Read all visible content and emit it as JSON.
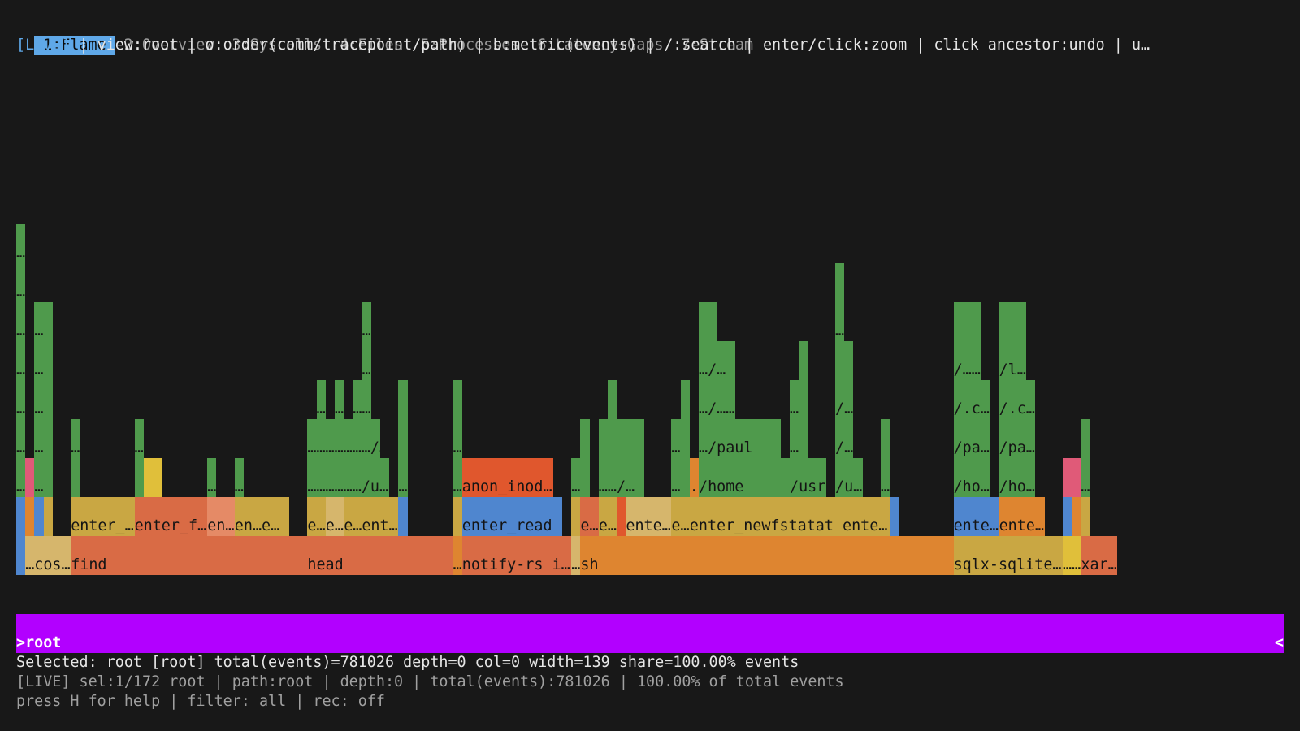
{
  "tabs": [
    {
      "label": "1:Flame",
      "active": true
    },
    {
      "label": "2:Overview",
      "active": false
    },
    {
      "label": "3:Syscalls",
      "active": false
    },
    {
      "label": "4:Files",
      "active": false
    },
    {
      "label": "5:Processes",
      "active": false
    },
    {
      "label": "6:Latency+Gaps",
      "active": false
    },
    {
      "label": "7:Stream",
      "active": false
    }
  ],
  "header": {
    "live_tag": "[LIVE]",
    "hint": " | view:root | o:order(comm/tracepoint/path) | b:metric(events) | /:search | enter/click:zoom | click ancestor:undo | u…"
  },
  "root": {
    "label": ">root",
    "right_marker": "<"
  },
  "status": {
    "selected": "Selected: root [root] total(events)=781026 depth=0 col=0 width=139 share=100.00% events",
    "info": "[LIVE] sel:1/172 root | path:root | depth:0 | total(events):781026 | 100.00% of total events",
    "help": "press H for help | filter: all | rec: off"
  },
  "colors": {
    "green": "#4f9a4c",
    "orange": "#de8530",
    "salmon": "#d96b45",
    "gold": "#c9a743",
    "blue": "#4f86cf",
    "red": "#e0572d",
    "pink": "#e05a78",
    "yellow": "#e0bf3a",
    "tan": "#d6b66c",
    "magenta": "#b200ff"
  },
  "frames": [
    {
      "col": 0,
      "w": 1,
      "lvl": 2,
      "c": "blue",
      "t": ""
    },
    {
      "col": 0,
      "w": 1,
      "lvl": 3,
      "c": "blue",
      "t": ""
    },
    {
      "col": 0,
      "w": 1,
      "lvl": 4,
      "c": "green",
      "t": "…"
    },
    {
      "col": 0,
      "w": 1,
      "lvl": 5,
      "c": "green",
      "t": "…"
    },
    {
      "col": 0,
      "w": 1,
      "lvl": 6,
      "c": "green",
      "t": "…"
    },
    {
      "col": 0,
      "w": 1,
      "lvl": 7,
      "c": "green",
      "t": "…"
    },
    {
      "col": 0,
      "w": 1,
      "lvl": 8,
      "c": "green",
      "t": "…"
    },
    {
      "col": 0,
      "w": 1,
      "lvl": 9,
      "c": "green",
      "t": "…"
    },
    {
      "col": 0,
      "w": 1,
      "lvl": 10,
      "c": "green",
      "t": "…"
    },
    {
      "col": 1,
      "w": 5,
      "lvl": 2,
      "c": "tan",
      "t": "…cos…"
    },
    {
      "col": 1,
      "w": 1,
      "lvl": 3,
      "c": "orange",
      "t": ""
    },
    {
      "col": 1,
      "w": 1,
      "lvl": 4,
      "c": "pink",
      "t": ""
    },
    {
      "col": 2,
      "w": 2,
      "lvl": 3,
      "c": "blue",
      "t": ""
    },
    {
      "col": 2,
      "w": 2,
      "lvl": 4,
      "c": "green",
      "t": "…"
    },
    {
      "col": 2,
      "w": 2,
      "lvl": 5,
      "c": "green",
      "t": "…"
    },
    {
      "col": 2,
      "w": 2,
      "lvl": 6,
      "c": "green",
      "t": "…"
    },
    {
      "col": 2,
      "w": 2,
      "lvl": 7,
      "c": "green",
      "t": "…"
    },
    {
      "col": 2,
      "w": 2,
      "lvl": 8,
      "c": "green",
      "t": "…"
    },
    {
      "col": 3,
      "w": 1,
      "lvl": 3,
      "c": "gold",
      "t": ""
    },
    {
      "col": 6,
      "w": 26,
      "lvl": 2,
      "c": "salmon",
      "t": "find"
    },
    {
      "col": 6,
      "w": 7,
      "lvl": 3,
      "c": "gold",
      "t": "enter_…"
    },
    {
      "col": 6,
      "w": 1,
      "lvl": 4,
      "c": "green",
      "t": ""
    },
    {
      "col": 6,
      "w": 1,
      "lvl": 5,
      "c": "green",
      "t": "…"
    },
    {
      "col": 13,
      "w": 8,
      "lvl": 3,
      "c": "salmon",
      "t": "enter_f…"
    },
    {
      "col": 13,
      "w": 1,
      "lvl": 4,
      "c": "green",
      "t": ""
    },
    {
      "col": 13,
      "w": 1,
      "lvl": 5,
      "c": "green",
      "t": "…"
    },
    {
      "col": 14,
      "w": 2,
      "lvl": 4,
      "c": "yellow",
      "t": ""
    },
    {
      "col": 21,
      "w": 3,
      "lvl": 3,
      "c": "pinksalmon",
      "t": "en…"
    },
    {
      "col": 21,
      "w": 1,
      "lvl": 4,
      "c": "green",
      "t": "…"
    },
    {
      "col": 24,
      "w": 6,
      "lvl": 3,
      "c": "gold",
      "t": "en…e…"
    },
    {
      "col": 24,
      "w": 1,
      "lvl": 4,
      "c": "green",
      "t": "…"
    },
    {
      "col": 32,
      "w": 16,
      "lvl": 2,
      "c": "salmon",
      "t": "head"
    },
    {
      "col": 32,
      "w": 2,
      "lvl": 3,
      "c": "gold",
      "t": "e…"
    },
    {
      "col": 34,
      "w": 2,
      "lvl": 3,
      "c": "tan",
      "t": "e…"
    },
    {
      "col": 36,
      "w": 6,
      "lvl": 3,
      "c": "gold",
      "t": "e…ent…"
    },
    {
      "col": 32,
      "w": 9,
      "lvl": 4,
      "c": "green",
      "t": "………………/u…"
    },
    {
      "col": 32,
      "w": 8,
      "lvl": 5,
      "c": "green",
      "t": "…………………/…"
    },
    {
      "col": 33,
      "w": 1,
      "lvl": 6,
      "c": "green",
      "t": "…"
    },
    {
      "col": 35,
      "w": 1,
      "lvl": 6,
      "c": "green",
      "t": "…"
    },
    {
      "col": 37,
      "w": 2,
      "lvl": 6,
      "c": "green",
      "t": "……"
    },
    {
      "col": 38,
      "w": 1,
      "lvl": 7,
      "c": "green",
      "t": "…"
    },
    {
      "col": 38,
      "w": 1,
      "lvl": 8,
      "c": "green",
      "t": "…"
    },
    {
      "col": 42,
      "w": 1,
      "lvl": 3,
      "c": "blue",
      "t": ""
    },
    {
      "col": 42,
      "w": 1,
      "lvl": 4,
      "c": "green",
      "t": "…"
    },
    {
      "col": 42,
      "w": 1,
      "lvl": 5,
      "c": "green",
      "t": ""
    },
    {
      "col": 42,
      "w": 1,
      "lvl": 6,
      "c": "green",
      "t": ""
    },
    {
      "col": 48,
      "w": 1,
      "lvl": 2,
      "c": "orange",
      "t": "…"
    },
    {
      "col": 48,
      "w": 1,
      "lvl": 3,
      "c": "gold",
      "t": ""
    },
    {
      "col": 48,
      "w": 1,
      "lvl": 4,
      "c": "green",
      "t": "…"
    },
    {
      "col": 48,
      "w": 1,
      "lvl": 5,
      "c": "green",
      "t": "…"
    },
    {
      "col": 48,
      "w": 1,
      "lvl": 6,
      "c": "green",
      "t": ""
    },
    {
      "col": 49,
      "w": 12,
      "lvl": 2,
      "c": "salmon",
      "t": "notify-rs i…"
    },
    {
      "col": 49,
      "w": 11,
      "lvl": 3,
      "c": "blue",
      "t": "enter_read"
    },
    {
      "col": 49,
      "w": 10,
      "lvl": 4,
      "c": "red",
      "t": "anon_inod…"
    },
    {
      "col": 61,
      "w": 1,
      "lvl": 2,
      "c": "tan",
      "t": "…"
    },
    {
      "col": 62,
      "w": 41,
      "lvl": 2,
      "c": "orange",
      "t": "sh"
    },
    {
      "col": 61,
      "w": 1,
      "lvl": 3,
      "c": "gold",
      "t": ""
    },
    {
      "col": 62,
      "w": 2,
      "lvl": 3,
      "c": "salmon",
      "t": "e…"
    },
    {
      "col": 64,
      "w": 2,
      "lvl": 3,
      "c": "gold",
      "t": "e…"
    },
    {
      "col": 66,
      "w": 1,
      "lvl": 3,
      "c": "red",
      "t": ""
    },
    {
      "col": 67,
      "w": 5,
      "lvl": 3,
      "c": "tan",
      "t": "ente…"
    },
    {
      "col": 72,
      "w": 2,
      "lvl": 3,
      "c": "gold",
      "t": "e…"
    },
    {
      "col": 74,
      "w": 22,
      "lvl": 3,
      "c": "gold",
      "t": "enter_newfstatat ente…"
    },
    {
      "col": 96,
      "w": 1,
      "lvl": 3,
      "c": "blue",
      "t": ""
    },
    {
      "col": 61,
      "w": 2,
      "lvl": 4,
      "c": "green",
      "t": "…"
    },
    {
      "col": 62,
      "w": 1,
      "lvl": 5,
      "c": "green",
      "t": ""
    },
    {
      "col": 64,
      "w": 5,
      "lvl": 4,
      "c": "green",
      "t": "……/…"
    },
    {
      "col": 64,
      "w": 5,
      "lvl": 5,
      "c": "green",
      "t": ""
    },
    {
      "col": 65,
      "w": 1,
      "lvl": 6,
      "c": "green",
      "t": ""
    },
    {
      "col": 72,
      "w": 2,
      "lvl": 4,
      "c": "green",
      "t": "…"
    },
    {
      "col": 72,
      "w": 2,
      "lvl": 5,
      "c": "green",
      "t": "…"
    },
    {
      "col": 73,
      "w": 1,
      "lvl": 6,
      "c": "green",
      "t": ""
    },
    {
      "col": 74,
      "w": 1,
      "lvl": 4,
      "c": "orange",
      "t": "."
    },
    {
      "col": 75,
      "w": 10,
      "lvl": 4,
      "c": "green",
      "t": "/home"
    },
    {
      "col": 85,
      "w": 4,
      "lvl": 4,
      "c": "green",
      "t": "/usr"
    },
    {
      "col": 75,
      "w": 9,
      "lvl": 5,
      "c": "green",
      "t": "…/paul"
    },
    {
      "col": 75,
      "w": 4,
      "lvl": 6,
      "c": "green",
      "t": "…/……"
    },
    {
      "col": 75,
      "w": 4,
      "lvl": 7,
      "c": "green",
      "t": "…/…"
    },
    {
      "col": 75,
      "w": 2,
      "lvl": 8,
      "c": "green",
      "t": ""
    },
    {
      "col": 85,
      "w": 2,
      "lvl": 5,
      "c": "green",
      "t": "…"
    },
    {
      "col": 85,
      "w": 2,
      "lvl": 6,
      "c": "green",
      "t": "…"
    },
    {
      "col": 86,
      "w": 1,
      "lvl": 7,
      "c": "green",
      "t": ""
    },
    {
      "col": 90,
      "w": 3,
      "lvl": 4,
      "c": "green",
      "t": "/u…"
    },
    {
      "col": 90,
      "w": 2,
      "lvl": 5,
      "c": "green",
      "t": "/…"
    },
    {
      "col": 90,
      "w": 2,
      "lvl": 6,
      "c": "green",
      "t": "/…"
    },
    {
      "col": 90,
      "w": 2,
      "lvl": 7,
      "c": "green",
      "t": ""
    },
    {
      "col": 90,
      "w": 1,
      "lvl": 8,
      "c": "green",
      "t": "…"
    },
    {
      "col": 90,
      "w": 1,
      "lvl": 9,
      "c": "green",
      "t": ""
    },
    {
      "col": 95,
      "w": 1,
      "lvl": 4,
      "c": "green",
      "t": "…"
    },
    {
      "col": 95,
      "w": 1,
      "lvl": 5,
      "c": "green",
      "t": ""
    },
    {
      "col": 103,
      "w": 12,
      "lvl": 2,
      "c": "gold",
      "t": "sqlx-sqlite…"
    },
    {
      "col": 103,
      "w": 5,
      "lvl": 3,
      "c": "blue",
      "t": "ente…"
    },
    {
      "col": 108,
      "w": 5,
      "lvl": 3,
      "c": "orange",
      "t": "ente…"
    },
    {
      "col": 103,
      "w": 4,
      "lvl": 4,
      "c": "green",
      "t": "/ho…"
    },
    {
      "col": 103,
      "w": 4,
      "lvl": 5,
      "c": "green",
      "t": "/pa…"
    },
    {
      "col": 103,
      "w": 4,
      "lvl": 6,
      "c": "green",
      "t": "/.c…"
    },
    {
      "col": 103,
      "w": 3,
      "lvl": 7,
      "c": "green",
      "t": "/……"
    },
    {
      "col": 103,
      "w": 3,
      "lvl": 8,
      "c": "green",
      "t": ""
    },
    {
      "col": 108,
      "w": 4,
      "lvl": 4,
      "c": "green",
      "t": "/ho…"
    },
    {
      "col": 108,
      "w": 4,
      "lvl": 5,
      "c": "green",
      "t": "/pa…"
    },
    {
      "col": 108,
      "w": 4,
      "lvl": 6,
      "c": "green",
      "t": "/.c…"
    },
    {
      "col": 108,
      "w": 3,
      "lvl": 7,
      "c": "green",
      "t": "/l…"
    },
    {
      "col": 108,
      "w": 3,
      "lvl": 8,
      "c": "green",
      "t": ""
    },
    {
      "col": 115,
      "w": 2,
      "lvl": 2,
      "c": "yellow",
      "t": "……"
    },
    {
      "col": 115,
      "w": 1,
      "lvl": 3,
      "c": "blue",
      "t": ""
    },
    {
      "col": 116,
      "w": 1,
      "lvl": 3,
      "c": "orange",
      "t": ""
    },
    {
      "col": 115,
      "w": 2,
      "lvl": 4,
      "c": "pink",
      "t": ""
    },
    {
      "col": 117,
      "w": 4,
      "lvl": 2,
      "c": "salmon",
      "t": "xar…"
    },
    {
      "col": 117,
      "w": 1,
      "lvl": 3,
      "c": "gold",
      "t": ""
    },
    {
      "col": 117,
      "w": 1,
      "lvl": 4,
      "c": "green",
      "t": "…"
    },
    {
      "col": 117,
      "w": 1,
      "lvl": 5,
      "c": "green",
      "t": ""
    }
  ]
}
